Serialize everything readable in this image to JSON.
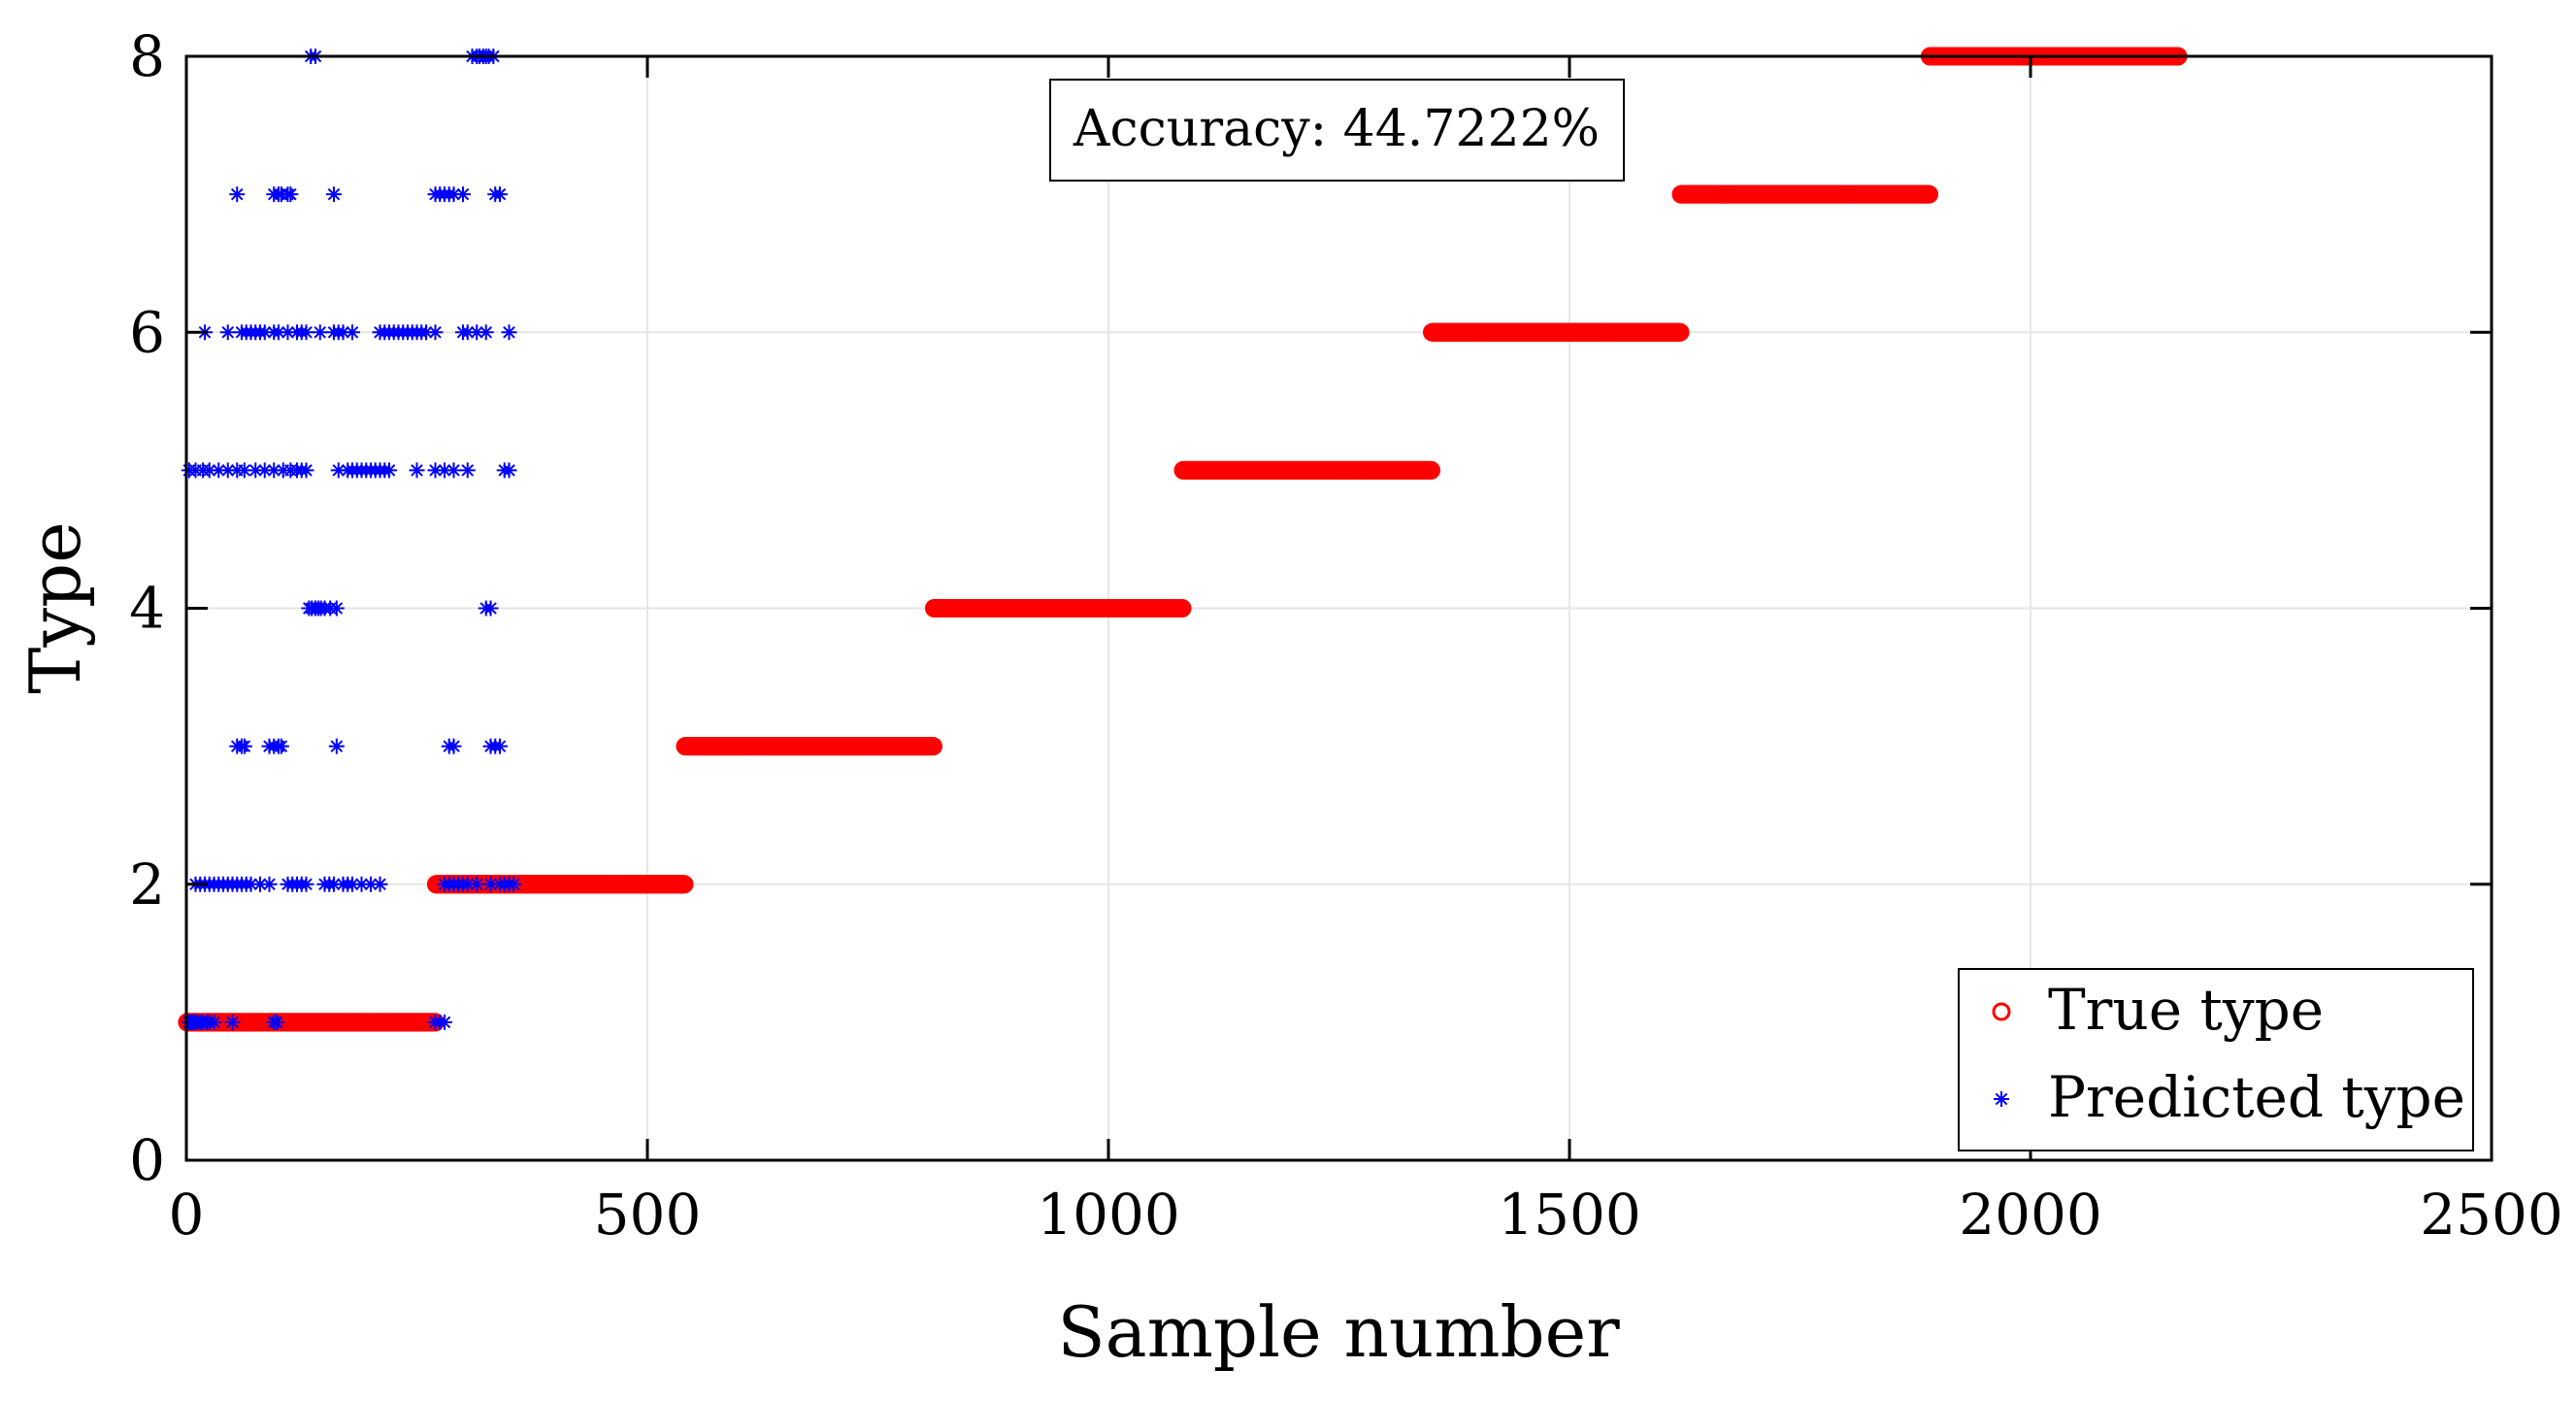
{
  "chart_data": {
    "type": "scatter",
    "title": "",
    "xlabel": "Sample number",
    "ylabel": "Type",
    "xlim": [
      0,
      2500
    ],
    "ylim": [
      0,
      8
    ],
    "x_ticks": [
      0,
      500,
      1000,
      1500,
      2000,
      2500
    ],
    "y_ticks": [
      0,
      2,
      4,
      6,
      8
    ],
    "grid": true,
    "legend_position": "bottom-right",
    "annotation": "Accuracy: 44.7222%",
    "series": [
      {
        "name": "True type",
        "marker": "circle",
        "color": "#ff0000",
        "segments": [
          {
            "type": 1,
            "x_start": 1,
            "x_end": 270
          },
          {
            "type": 2,
            "x_start": 271,
            "x_end": 540
          },
          {
            "type": 3,
            "x_start": 541,
            "x_end": 810
          },
          {
            "type": 4,
            "x_start": 811,
            "x_end": 1080
          },
          {
            "type": 5,
            "x_start": 1081,
            "x_end": 1350
          },
          {
            "type": 6,
            "x_start": 1351,
            "x_end": 1620
          },
          {
            "type": 7,
            "x_start": 1621,
            "x_end": 1890
          },
          {
            "type": 8,
            "x_start": 1891,
            "x_end": 2160
          }
        ]
      },
      {
        "name": "Predicted type",
        "marker": "asterisk",
        "color": "#0000ff",
        "points_by_type": {
          "1": [
            3,
            5,
            7,
            9,
            12,
            15,
            18,
            22,
            25,
            30,
            50,
            95,
            98,
            270,
            275,
            280
          ],
          "2": [
            10,
            15,
            20,
            25,
            30,
            35,
            40,
            45,
            50,
            55,
            60,
            65,
            70,
            80,
            90,
            110,
            115,
            120,
            125,
            130,
            150,
            155,
            160,
            170,
            175,
            180,
            190,
            200,
            210,
            280,
            285,
            290,
            295,
            300,
            305,
            315,
            330,
            340,
            345,
            350,
            355
          ],
          "3": [
            55,
            60,
            63,
            90,
            95,
            100,
            103,
            163,
            285,
            290,
            330,
            335,
            340
          ],
          "4": [
            133,
            136,
            140,
            143,
            146,
            150,
            156,
            163,
            325,
            330
          ],
          "5": [
            3,
            10,
            18,
            25,
            35,
            45,
            55,
            63,
            75,
            85,
            95,
            105,
            113,
            120,
            125,
            130,
            165,
            175,
            180,
            185,
            190,
            195,
            200,
            205,
            210,
            215,
            220,
            250,
            270,
            280,
            290,
            305,
            345,
            350
          ],
          "6": [
            20,
            45,
            60,
            65,
            70,
            75,
            80,
            85,
            95,
            100,
            110,
            120,
            125,
            130,
            145,
            160,
            165,
            170,
            180,
            210,
            215,
            220,
            225,
            230,
            235,
            240,
            245,
            250,
            255,
            260,
            270,
            300,
            305,
            315,
            325,
            350
          ],
          "7": [
            55,
            95,
            100,
            103,
            110,
            113,
            160,
            270,
            275,
            280,
            285,
            290,
            300,
            335,
            340
          ],
          "8": [
            135,
            140,
            310,
            315,
            318,
            322,
            325,
            328,
            333
          ]
        }
      }
    ]
  }
}
